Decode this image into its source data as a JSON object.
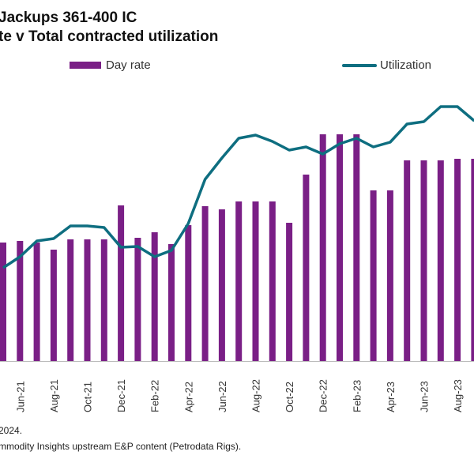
{
  "chart_data": {
    "type": "bar",
    "title": "Jackups 361-400 IC",
    "subtitle": "te v Total contracted utilization",
    "xlabel": "",
    "ylabel": "",
    "grid": false,
    "legend_position": "top",
    "categories": [
      "May-21",
      "Jun-21",
      "Jul-21",
      "Aug-21",
      "Sep-21",
      "Oct-21",
      "Nov-21",
      "Dec-21",
      "Jan-22",
      "Feb-22",
      "Mar-22",
      "Apr-22",
      "May-22",
      "Jun-22",
      "Jul-22",
      "Aug-22",
      "Sep-22",
      "Oct-22",
      "Nov-22",
      "Dec-22",
      "Jan-23",
      "Feb-23",
      "Mar-23",
      "Apr-23",
      "May-23",
      "Jun-23",
      "Jul-23",
      "Aug-23",
      "Sep-23"
    ],
    "tick_labels": [
      "Jun-21",
      "Aug-21",
      "Oct-21",
      "Dec-21",
      "Feb-22",
      "Apr-22",
      "Jun-22",
      "Aug-22",
      "Oct-22",
      "Dec-22",
      "Feb-23",
      "Apr-23",
      "Jun-23",
      "Aug-23"
    ],
    "series": [
      {
        "name": "Day rate",
        "kind": "bar",
        "color": "#7a1f86",
        "values": [
          150,
          152,
          150,
          141,
          154,
          154,
          154,
          197,
          156,
          163,
          148,
          172,
          196,
          192,
          202,
          202,
          202,
          175,
          236,
          287,
          287,
          287,
          216,
          216,
          254,
          254,
          254,
          256,
          256
        ]
      },
      {
        "name": "Utilization",
        "kind": "line",
        "color": "#0e6e80",
        "values": [
          118,
          132,
          152,
          155,
          171,
          171,
          169,
          144,
          145,
          132,
          140,
          174,
          230,
          257,
          282,
          286,
          278,
          267,
          271,
          262,
          275,
          282,
          271,
          277,
          300,
          303,
          322,
          322,
          304
        ]
      }
    ],
    "ylim": [
      0,
      330
    ]
  },
  "footnotes": {
    "line1": "2024.",
    "line2": "mmodity Insights upstream E&P content (Petrodata Rigs)."
  }
}
